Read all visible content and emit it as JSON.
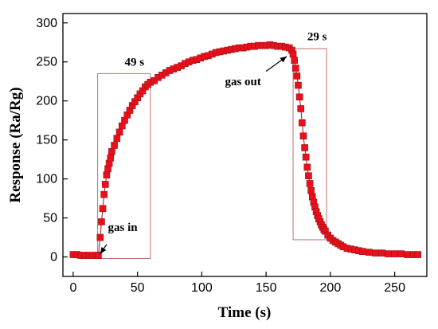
{
  "chart_data": {
    "type": "scatter",
    "title": "",
    "xlabel": "Time (s)",
    "ylabel": "Response (Ra/Rg)",
    "xlim": [
      -8,
      275
    ],
    "ylim": [
      -25,
      312
    ],
    "xticks": [
      0,
      50,
      100,
      150,
      200,
      250
    ],
    "yticks": [
      0,
      50,
      100,
      150,
      200,
      250,
      300
    ],
    "grid": false,
    "legend": "none",
    "marker_color": "#e8101c",
    "line_color": "#8b1a1a",
    "series": [
      {
        "x": [
          0,
          3,
          6,
          9,
          12,
          15,
          18,
          19.5,
          21,
          22,
          23,
          24,
          25,
          26,
          27,
          28,
          29,
          30,
          32,
          34,
          36,
          38,
          40,
          42,
          44,
          46,
          48,
          50,
          52,
          54,
          56,
          58,
          60,
          63,
          66,
          69,
          72,
          75,
          78,
          81,
          84,
          87,
          90,
          93,
          96,
          99,
          102,
          105,
          108,
          111,
          114,
          117,
          120,
          123,
          126,
          129,
          132,
          135,
          138,
          141,
          144,
          147,
          150,
          153,
          156,
          159,
          162,
          165,
          168,
          170,
          171,
          172,
          173,
          174,
          175,
          176,
          177,
          178,
          179,
          180,
          181,
          182,
          183,
          184,
          185,
          186,
          187,
          188,
          189,
          190,
          191,
          192,
          193,
          194,
          195,
          196,
          198,
          200,
          202,
          204,
          206,
          208,
          210,
          213,
          216,
          219,
          222,
          225,
          230,
          235,
          240,
          245,
          250,
          255,
          260,
          265,
          268
        ],
        "y": [
          3,
          3,
          2,
          2,
          2,
          2,
          2,
          2,
          25,
          45,
          62,
          80,
          93,
          105,
          113,
          120,
          127,
          135,
          143,
          152,
          160,
          168,
          175,
          182,
          188,
          194,
          199,
          204,
          209,
          213,
          218,
          221,
          224,
          226,
          230,
          233,
          236,
          239,
          241,
          243,
          245,
          248,
          250,
          252,
          253,
          255,
          257,
          258,
          260,
          262,
          263,
          264,
          265,
          266,
          267,
          268,
          268,
          269,
          270,
          270,
          271,
          271,
          271,
          272,
          271,
          270,
          270,
          269,
          268,
          265,
          260,
          252,
          242,
          232,
          220,
          205,
          190,
          172,
          155,
          140,
          128,
          115,
          104,
          94,
          85,
          77,
          70,
          64,
          58,
          53,
          49,
          45,
          41,
          38,
          35,
          33,
          28,
          24,
          21,
          19,
          17,
          15,
          13,
          11,
          10,
          9,
          8,
          7,
          6,
          5,
          5,
          4,
          4,
          4,
          3,
          3,
          3
        ]
      }
    ],
    "annotations": [
      {
        "text": "49 s",
        "x": 40,
        "y": 245
      },
      {
        "text": "29 s",
        "x": 182,
        "y": 278
      },
      {
        "text": "gas in",
        "x": 27,
        "y": 33
      },
      {
        "text": "gas out",
        "x": 118,
        "y": 220
      },
      {
        "type": "arrow",
        "from": [
          26,
          16
        ],
        "to": [
          21,
          4
        ]
      },
      {
        "type": "arrow",
        "from": [
          150,
          238
        ],
        "to": [
          166,
          257
        ]
      },
      {
        "type": "box",
        "x": [
          19,
          60
        ],
        "y": [
          -2,
          235
        ]
      },
      {
        "type": "box",
        "x": [
          171,
          197
        ],
        "y": [
          22,
          267
        ]
      }
    ]
  }
}
